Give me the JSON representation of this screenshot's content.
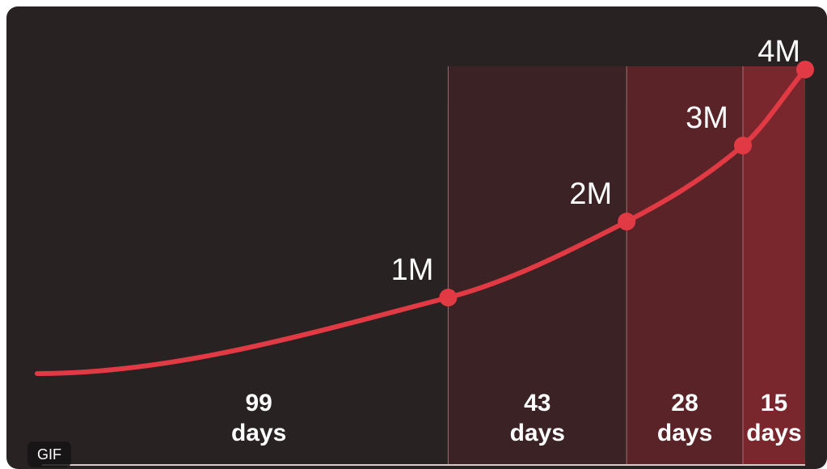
{
  "badge": "GIF",
  "colors": {
    "background": "#282223",
    "line": "#e23a44",
    "text": "#ffffff",
    "divider": "#b98a8e",
    "shade": [
      "#3a2225",
      "#5a2328",
      "#7a262d"
    ]
  },
  "chart_data": {
    "type": "line",
    "title": "",
    "xlabel": "",
    "ylabel": "",
    "milestones": [
      {
        "label": "1M",
        "value": 1
      },
      {
        "label": "2M",
        "value": 2
      },
      {
        "label": "3M",
        "value": 3
      },
      {
        "label": "4M",
        "value": 4
      }
    ],
    "intervals": [
      {
        "value": "99",
        "unit": "days"
      },
      {
        "value": "43",
        "unit": "days"
      },
      {
        "value": "28",
        "unit": "days"
      },
      {
        "value": "15",
        "unit": "days"
      }
    ],
    "series": [
      {
        "x": [
          0,
          99,
          142,
          170,
          185
        ],
        "y": [
          0,
          1,
          2,
          3,
          4
        ]
      }
    ],
    "xlim": [
      0,
      185
    ],
    "ylim": [
      0,
      4
    ]
  }
}
